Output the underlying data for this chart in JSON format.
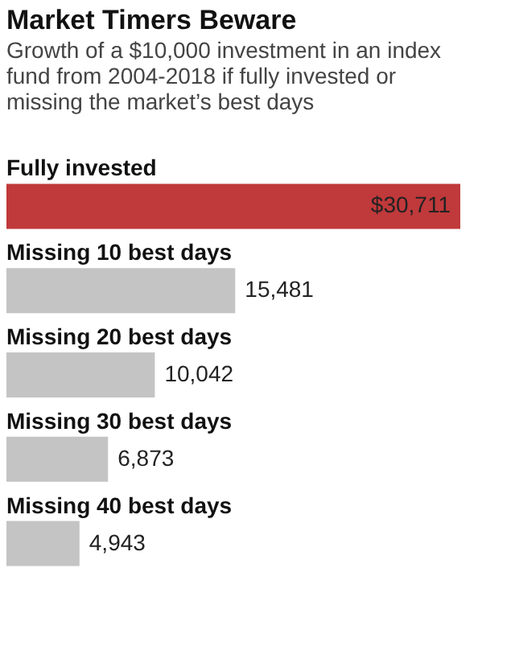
{
  "chart_data": {
    "type": "bar",
    "orientation": "horizontal",
    "title": "Market Timers Beware",
    "subtitle": "Growth of a $10,000 investment in an index fund from 2004-2018 if fully invested or missing the market’s best days",
    "categories": [
      "Fully invested",
      "Missing 10 best days",
      "Missing 20 best days",
      "Missing 30 best days",
      "Missing 40 best days"
    ],
    "values": [
      30711,
      15481,
      10042,
      6873,
      4943
    ],
    "colors": [
      "#c0393b",
      "#c4c4c4",
      "#c4c4c4",
      "#c4c4c4",
      "#c4c4c4"
    ],
    "value_labels": [
      "$30,711",
      "15,481",
      "10,042",
      "6,873",
      "4,943"
    ]
  }
}
